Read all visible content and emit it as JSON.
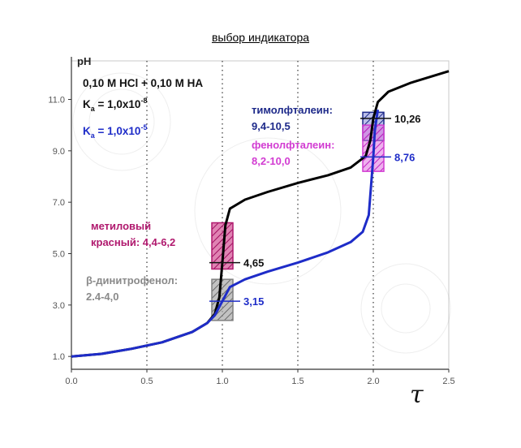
{
  "header": {
    "title": "выбор индикатора"
  },
  "chart_data": {
    "type": "line",
    "title": "",
    "xlabel": "τ",
    "ylabel": "pH",
    "xlim": [
      0,
      2.5
    ],
    "ylim": [
      0.5,
      12.5
    ],
    "x_ticks": [
      "0.0",
      "0.5",
      "1.0",
      "1.5",
      "2.0",
      "2.5"
    ],
    "y_ticks": [
      "1.0",
      "3.0",
      "5.0",
      "7.0",
      "9.0",
      "11.0"
    ],
    "x_tick_values": [
      0,
      0.5,
      1.0,
      1.5,
      2.0,
      2.5
    ],
    "y_tick_values": [
      1,
      3,
      5,
      7,
      9,
      11
    ],
    "vertical_dotted_lines": [
      0.5,
      1.0,
      1.5,
      2.0
    ],
    "legend_lines": {
      "mixture": "0,10 M HCl + 0,10 M HA",
      "ka_strong_base": "K",
      "ka_strong_sub": "a",
      "ka_strong_value": " = 1,0x10",
      "ka_strong_exp": "-8",
      "ka_weak_base": "K",
      "ka_weak_sub": "a",
      "ka_weak_value": " = 1,0x10",
      "ka_weak_exp": "-5"
    },
    "series": [
      {
        "color": "#000000",
        "points": [
          [
            0,
            1.0
          ],
          [
            0.2,
            1.1
          ],
          [
            0.4,
            1.3
          ],
          [
            0.6,
            1.55
          ],
          [
            0.8,
            1.95
          ],
          [
            0.9,
            2.3
          ],
          [
            0.95,
            2.65
          ],
          [
            0.98,
            3.3
          ],
          [
            1.0,
            4.65
          ],
          [
            1.02,
            6.1
          ],
          [
            1.05,
            6.75
          ],
          [
            1.15,
            7.1
          ],
          [
            1.3,
            7.4
          ],
          [
            1.5,
            7.75
          ],
          [
            1.7,
            8.05
          ],
          [
            1.85,
            8.35
          ],
          [
            1.95,
            8.8
          ],
          [
            1.98,
            9.4
          ],
          [
            2.0,
            10.26
          ],
          [
            2.03,
            10.9
          ],
          [
            2.1,
            11.3
          ],
          [
            2.25,
            11.65
          ],
          [
            2.5,
            12.1
          ]
        ]
      },
      {
        "color": "#1e2cc8",
        "points": [
          [
            0,
            1.0
          ],
          [
            0.2,
            1.1
          ],
          [
            0.4,
            1.3
          ],
          [
            0.6,
            1.55
          ],
          [
            0.8,
            1.95
          ],
          [
            0.9,
            2.3
          ],
          [
            0.95,
            2.6
          ],
          [
            1.0,
            3.15
          ],
          [
            1.05,
            3.7
          ],
          [
            1.15,
            4.0
          ],
          [
            1.3,
            4.3
          ],
          [
            1.5,
            4.65
          ],
          [
            1.7,
            5.05
          ],
          [
            1.85,
            5.45
          ],
          [
            1.93,
            5.85
          ],
          [
            1.97,
            6.5
          ],
          [
            2.0,
            8.76
          ],
          [
            2.01,
            9.8
          ],
          [
            2.03,
            10.6
          ]
        ]
      }
    ],
    "indicator_boxes": [
      {
        "ymin": 9.4,
        "ymax": 10.5,
        "color": "#1e2a8a"
      },
      {
        "ymin": 8.2,
        "ymax": 10.0,
        "color": "#d23cd2"
      },
      {
        "ymin": 4.4,
        "ymax": 6.2,
        "color": "#b0196e"
      },
      {
        "ymin": 2.4,
        "ymax": 4.0,
        "color": "#808080"
      }
    ],
    "value_labels": [
      {
        "x": 2.0,
        "y": 10.26,
        "text": "10,26",
        "color": "#111111"
      },
      {
        "x": 2.0,
        "y": 8.76,
        "text": "8,76",
        "color": "#1e2cc8"
      },
      {
        "x": 1.0,
        "y": 4.65,
        "text": "4,65",
        "color": "#111111"
      },
      {
        "x": 1.0,
        "y": 3.15,
        "text": "3,15",
        "color": "#1e2cc8"
      }
    ],
    "indicator_labels": [
      {
        "lines": [
          "тимолфталеин:",
          "9,4-10,5"
        ],
        "color": "#1e2a8a"
      },
      {
        "lines": [
          "фенолфталеин:",
          "8,2-10,0"
        ],
        "color": "#d23cd2"
      },
      {
        "lines": [
          "метиловый",
          "красный: 4,4-6,2"
        ],
        "color": "#b0196e"
      },
      {
        "lines": [
          "β-динитрофенол:",
          "2.4-4,0"
        ],
        "color": "#8a8a8a"
      }
    ]
  }
}
